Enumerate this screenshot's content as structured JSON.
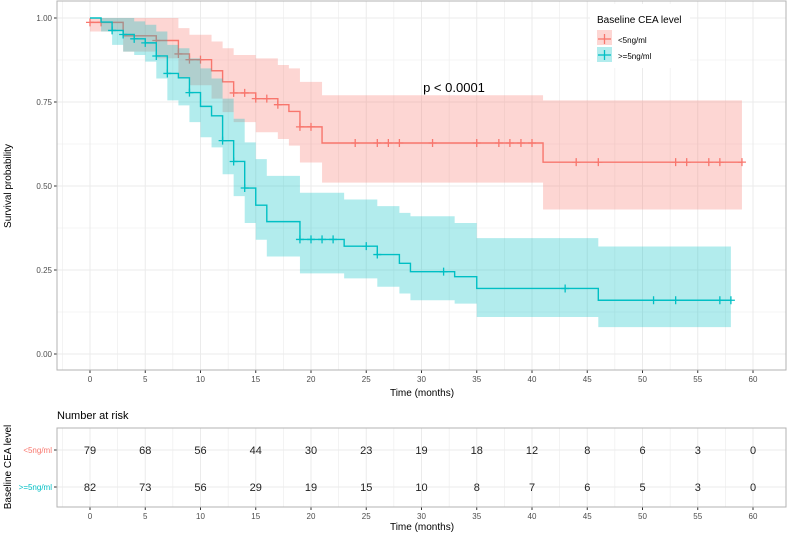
{
  "chart_data": {
    "type": "line",
    "subtype": "kaplan-meier",
    "xlabel": "Time (months)",
    "ylabel": "Survival probability",
    "xlim": [
      -2.5,
      63
    ],
    "ylim": [
      0,
      1
    ],
    "xticks": [
      0,
      5,
      10,
      15,
      20,
      25,
      30,
      35,
      40,
      45,
      50,
      55,
      60
    ],
    "yticks": [
      "0.00",
      "0.25",
      "0.50",
      "0.75",
      "1.00"
    ],
    "annotation": "p < 0.0001",
    "legend": {
      "title": "Baseline CEA level",
      "position": "top-right"
    },
    "series": [
      {
        "name": "<5ng/ml",
        "color": "#F8766D",
        "fill": "#F8766D",
        "steps": [
          [
            0,
            0.987,
            0.96,
            1.0
          ],
          [
            3,
            0.947,
            0.9,
            1.0
          ],
          [
            6,
            0.933,
            0.88,
            1.0
          ],
          [
            8,
            0.893,
            0.82,
            0.97
          ],
          [
            9,
            0.876,
            0.8,
            0.95
          ],
          [
            11,
            0.843,
            0.76,
            0.93
          ],
          [
            12,
            0.81,
            0.72,
            0.91
          ],
          [
            13,
            0.777,
            0.69,
            0.89
          ],
          [
            15,
            0.76,
            0.66,
            0.88
          ],
          [
            17,
            0.742,
            0.64,
            0.86
          ],
          [
            18,
            0.722,
            0.62,
            0.85
          ],
          [
            19,
            0.676,
            0.57,
            0.81
          ],
          [
            21,
            0.628,
            0.51,
            0.77
          ],
          [
            41,
            0.571,
            0.43,
            0.755
          ]
        ],
        "end": 59,
        "censored": [
          0,
          1,
          6,
          8,
          9,
          10,
          13,
          14,
          15,
          16,
          17,
          19,
          20,
          24,
          26,
          27,
          28,
          31,
          35,
          37,
          38,
          39,
          40,
          44,
          46,
          53,
          54,
          56,
          57,
          59
        ]
      },
      {
        "name": ">=5ng/ml",
        "color": "#00BFC4",
        "fill": "#00BFC4",
        "steps": [
          [
            0,
            1.0,
            1.0,
            1.0
          ],
          [
            1,
            0.988,
            0.96,
            1.0
          ],
          [
            2,
            0.963,
            0.92,
            1.0
          ],
          [
            3,
            0.951,
            0.9,
            1.0
          ],
          [
            4,
            0.938,
            0.89,
            0.99
          ],
          [
            5,
            0.926,
            0.87,
            0.98
          ],
          [
            6,
            0.887,
            0.82,
            0.96
          ],
          [
            7,
            0.835,
            0.755,
            0.92
          ],
          [
            8,
            0.822,
            0.74,
            0.91
          ],
          [
            9,
            0.778,
            0.69,
            0.88
          ],
          [
            10,
            0.737,
            0.645,
            0.85
          ],
          [
            11,
            0.709,
            0.615,
            0.82
          ],
          [
            12,
            0.635,
            0.535,
            0.76
          ],
          [
            13,
            0.573,
            0.47,
            0.7
          ],
          [
            14,
            0.494,
            0.39,
            0.63
          ],
          [
            15,
            0.443,
            0.34,
            0.58
          ],
          [
            16,
            0.394,
            0.29,
            0.53
          ],
          [
            19,
            0.341,
            0.24,
            0.48
          ],
          [
            23,
            0.321,
            0.225,
            0.46
          ],
          [
            26,
            0.296,
            0.2,
            0.44
          ],
          [
            28,
            0.27,
            0.18,
            0.42
          ],
          [
            29,
            0.245,
            0.16,
            0.41
          ],
          [
            33,
            0.23,
            0.15,
            0.39
          ],
          [
            35,
            0.195,
            0.11,
            0.345
          ],
          [
            46,
            0.16,
            0.08,
            0.32
          ]
        ],
        "end": 58,
        "censored": [
          2,
          3,
          4,
          5,
          6,
          7,
          9,
          12,
          13,
          14,
          19,
          20,
          21,
          22,
          25,
          26,
          32,
          43,
          51,
          53,
          57,
          58
        ]
      }
    ],
    "risk_table": {
      "title": "Number at risk",
      "ylabel": "Baseline CEA level",
      "xlabel": "Time (months)",
      "times": [
        0,
        5,
        10,
        15,
        20,
        25,
        30,
        35,
        40,
        45,
        50,
        55,
        60
      ],
      "rows": [
        {
          "name": "<5ng/ml",
          "color": "#F8766D",
          "values": [
            79,
            68,
            56,
            44,
            30,
            23,
            19,
            18,
            12,
            8,
            6,
            3,
            0
          ]
        },
        {
          "name": ">=5ng/ml",
          "color": "#00BFC4",
          "values": [
            82,
            73,
            56,
            29,
            19,
            15,
            10,
            8,
            7,
            6,
            5,
            3,
            0
          ]
        }
      ]
    }
  }
}
